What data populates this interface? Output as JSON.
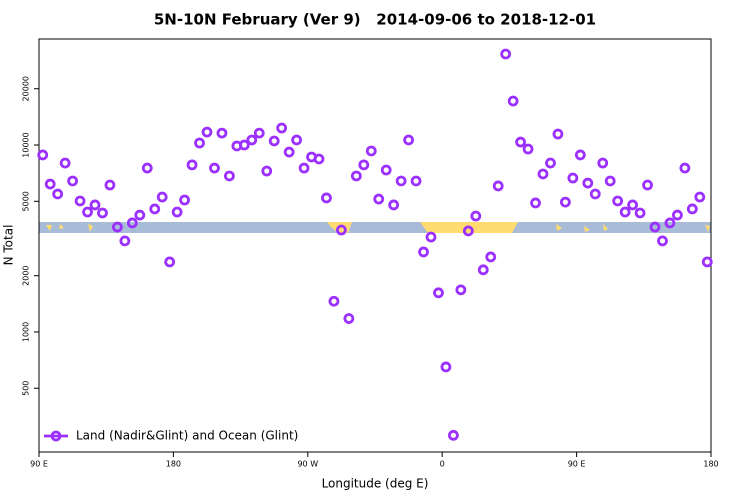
{
  "chart_data": {
    "type": "scatter",
    "title": "5N-10N February (Ver 9)   2014-09-06 to 2018-12-01",
    "x_label": "Longitude (deg E)",
    "y_label": "N Total",
    "x": [
      92.5,
      97.5,
      102.5,
      107.5,
      112.5,
      117.5,
      122.5,
      127.5,
      132.5,
      137.5,
      142.5,
      147.5,
      152.5,
      157.5,
      162.5,
      167.5,
      172.5,
      177.5,
      182.5,
      187.5,
      192.5,
      197.5,
      202.5,
      207.5,
      212.5,
      217.5,
      222.5,
      227.5,
      232.5,
      237.5,
      242.5,
      247.5,
      252.5,
      257.5,
      262.5,
      267.5,
      272.5,
      277.5,
      282.5,
      287.5,
      292.5,
      297.5,
      302.5,
      307.5,
      312.5,
      317.5,
      322.5,
      327.5,
      332.5,
      337.5,
      342.5,
      347.5,
      352.5,
      357.5,
      362.5,
      367.5,
      372.5,
      377.5,
      382.5,
      387.5,
      392.5,
      397.5,
      402.5,
      407.5,
      412.5,
      417.5,
      422.5,
      427.5,
      432.5,
      437.5,
      442.5,
      447.5,
      452.5,
      457.5,
      462.5,
      467.5,
      472.5,
      477.5,
      482.5,
      487.5,
      492.5,
      497.5,
      502.5,
      507.5,
      512.5,
      517.5,
      522.5,
      527.5,
      532.5,
      537.5
    ],
    "series": [
      {
        "name": "Land (Nadir&Glint) and Ocean (Glint)",
        "color": "#9b30ff",
        "values": [
          8850,
          6180,
          5470,
          8010,
          6420,
          5020,
          4380,
          4780,
          4330,
          6110,
          3640,
          3070,
          3830,
          4220,
          7530,
          4550,
          5270,
          2370,
          4380,
          5080,
          7830,
          10250,
          11730,
          7530,
          11580,
          6830,
          9880,
          10000,
          10640,
          11580,
          7260,
          10510,
          12330,
          9170,
          10640,
          7530,
          8630,
          8420,
          5210,
          1460,
          3510,
          1180,
          6830,
          7830,
          9290,
          5140,
          7350,
          4780,
          6420,
          10640,
          6420,
          2680,
          3220,
          1620,
          650,
          280,
          1680,
          3470,
          4170,
          2150,
          2520,
          6040,
          30670,
          17190,
          10370,
          9520,
          4900,
          7000,
          8010,
          11450,
          4950,
          6660,
          8850,
          6260,
          5470,
          8010,
          6420,
          5020,
          4380,
          4780,
          4330,
          6110,
          3640,
          3070,
          3830,
          4220,
          7530,
          4550,
          5270,
          2370
        ]
      }
    ],
    "xlim": [
      90,
      540
    ],
    "xticks": [
      {
        "value": 90,
        "label": "90 E"
      },
      180,
      {
        "value": 270,
        "label": "90 W"
      },
      {
        "value": 360,
        "label": "0"
      },
      {
        "value": 450,
        "label": "90 E"
      },
      {
        "value": 540,
        "label": "180"
      }
    ],
    "ylim": [
      228,
      36900
    ],
    "yticks": [
      500,
      1000,
      2000,
      5000,
      10000,
      20000
    ],
    "ylog": true,
    "legend": "bottom-left"
  }
}
